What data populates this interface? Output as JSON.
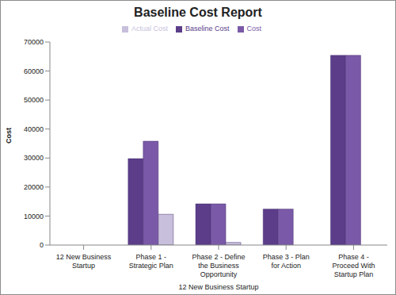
{
  "chart_data": {
    "type": "bar",
    "title": "Baseline Cost Report",
    "y_label": "Cost",
    "x_label": "12 New Business Startup",
    "categories": [
      "12 New Business Startup",
      "Phase 1 - Strategic Plan",
      "Phase 2 - Define the Business Opportunity",
      "Phase 3 - Plan for Action",
      "Phase 4 - Proceed With Startup Plan"
    ],
    "series": [
      {
        "name": "Baseline Cost",
        "color": "#5b3d8a",
        "values": [
          null,
          29800,
          14200,
          12400,
          65400
        ]
      },
      {
        "name": "Cost",
        "color": "#7a5aa8",
        "values": [
          null,
          35800,
          14200,
          12400,
          65400
        ]
      },
      {
        "name": "Actual Cost",
        "color": "#c8bfdc",
        "values": [
          null,
          10600,
          900,
          0,
          0
        ]
      }
    ],
    "ylim": [
      0,
      70000
    ],
    "yticks": [
      0,
      10000,
      20000,
      30000,
      40000,
      50000,
      60000,
      70000
    ],
    "grid": false,
    "legend": "top"
  }
}
